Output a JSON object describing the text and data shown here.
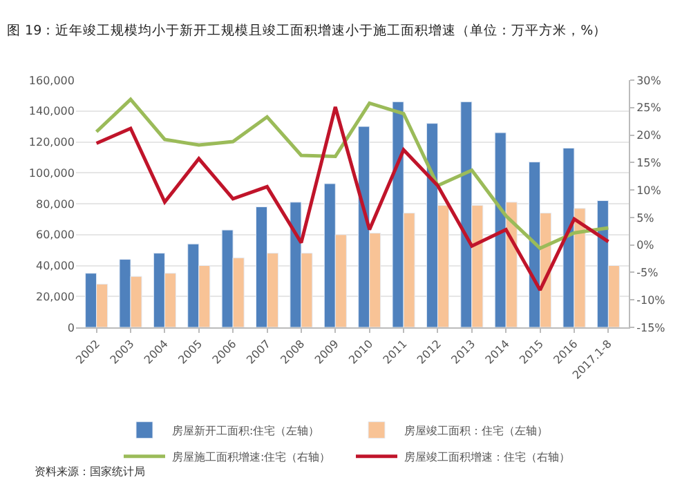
{
  "chart_data": {
    "type": "bar",
    "title": "图 19：近年竣工规模均小于新开工规模且竣工面积增速小于施工面积增速（单位：万平方米，%）",
    "categories": [
      "2002",
      "2003",
      "2004",
      "2005",
      "2006",
      "2007",
      "2008",
      "2009",
      "2010",
      "2011",
      "2012",
      "2013",
      "2014",
      "2015",
      "2016",
      "2017.1-8"
    ],
    "series": [
      {
        "name": "房屋新开工面积:住宅（左轴）",
        "color": "#4f81bd",
        "values": [
          35000,
          44000,
          48000,
          54000,
          63000,
          78000,
          81000,
          93000,
          130000,
          146000,
          132000,
          146000,
          126000,
          107000,
          116000,
          82000
        ]
      },
      {
        "name": "房屋竣工面积：住宅（左轴）",
        "color": "#f8c396",
        "values": [
          28000,
          33000,
          35000,
          40000,
          45000,
          48000,
          48000,
          60000,
          61000,
          74000,
          79000,
          79000,
          81000,
          74000,
          77000,
          40000
        ]
      },
      {
        "name": "房屋施工面积增速:住宅（右轴）",
        "type": "line",
        "axis": "y2",
        "color": "#9bbb59",
        "values": [
          20.6,
          26.5,
          19.2,
          18.2,
          18.8,
          23.3,
          16.3,
          16.1,
          25.8,
          23.9,
          10.8,
          13.6,
          5.3,
          -0.6,
          2.2,
          3.1
        ]
      },
      {
        "name": "房屋竣工面积增速：住宅（右轴）",
        "type": "line",
        "axis": "y2",
        "color": "#c0142a",
        "values": [
          18.5,
          21.2,
          7.8,
          15.7,
          8.4,
          10.6,
          0.4,
          25.1,
          2.8,
          17.3,
          10.8,
          -0.2,
          2.8,
          -8.2,
          4.7,
          0.6
        ]
      }
    ],
    "ylim": [
      0,
      160000
    ],
    "yticks": [
      {
        "value": 0,
        "label": "0"
      },
      {
        "value": 20000,
        "label": "20,000"
      },
      {
        "value": 40000,
        "label": "40,000"
      },
      {
        "value": 60000,
        "label": "60,000"
      },
      {
        "value": 80000,
        "label": "80,000"
      },
      {
        "value": 100000,
        "label": "100,000"
      },
      {
        "value": 120000,
        "label": "120,000"
      },
      {
        "value": 140000,
        "label": "140,000"
      },
      {
        "value": 160000,
        "label": "160,000"
      }
    ],
    "y2lim": [
      -15,
      30
    ],
    "y2ticks": [
      {
        "value": -15,
        "label": "-15%"
      },
      {
        "value": -10,
        "label": "-10%"
      },
      {
        "value": -5,
        "label": "-5%"
      },
      {
        "value": 0,
        "label": "0%"
      },
      {
        "value": 5,
        "label": "5%"
      },
      {
        "value": 10,
        "label": "10%"
      },
      {
        "value": 15,
        "label": "15%"
      },
      {
        "value": 20,
        "label": "20%"
      },
      {
        "value": 25,
        "label": "25%"
      },
      {
        "value": 30,
        "label": "30%"
      }
    ],
    "grid": "y",
    "legend": "bottom",
    "marker": "none",
    "line_style": "solid",
    "annotations": [
      "资料来源：国家统计局"
    ]
  }
}
